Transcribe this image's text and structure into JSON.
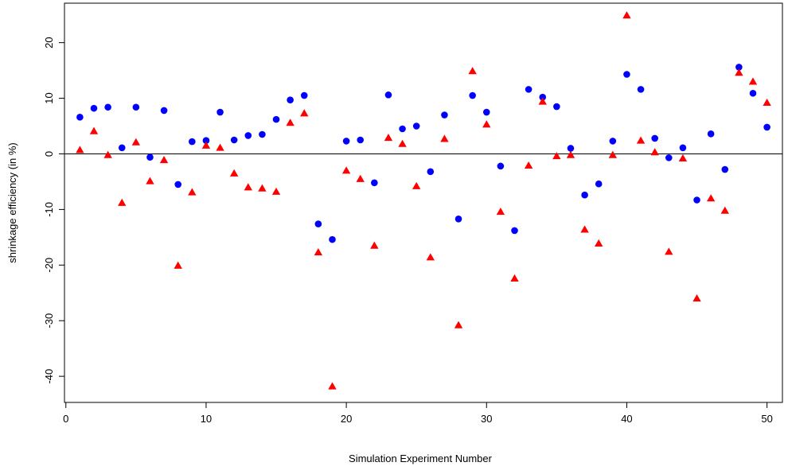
{
  "chart_data": {
    "type": "scatter",
    "title": "",
    "xlabel": "Simulation Experiment Number",
    "ylabel": "shrinkage efficiency (in %)",
    "xlim": [
      -0.1,
      51.1
    ],
    "ylim": [
      -44.7,
      27.1
    ],
    "x_ticks": [
      0,
      10,
      20,
      30,
      40,
      50
    ],
    "y_ticks": [
      -40,
      -30,
      -20,
      -10,
      0,
      10,
      20
    ],
    "reference_line_y": 0,
    "grid": false,
    "legend": null,
    "series": [
      {
        "color": "#0000ff",
        "marker": "circle",
        "x": [
          1,
          2,
          3,
          4,
          5,
          6,
          7,
          8,
          9,
          10,
          11,
          12,
          13,
          14,
          15,
          16,
          17,
          18,
          19,
          20,
          21,
          22,
          23,
          24,
          25,
          26,
          27,
          28,
          29,
          30,
          31,
          32,
          33,
          34,
          35,
          36,
          37,
          38,
          39,
          40,
          41,
          42,
          43,
          44,
          45,
          46,
          47,
          48,
          49,
          50
        ],
        "values": [
          6.6,
          8.2,
          8.4,
          1.1,
          8.4,
          -0.6,
          7.8,
          -5.5,
          2.2,
          2.4,
          7.5,
          2.5,
          3.3,
          3.5,
          6.2,
          9.7,
          10.5,
          -12.6,
          -15.4,
          2.3,
          2.5,
          -5.2,
          10.6,
          4.5,
          5.0,
          -3.2,
          7.0,
          -11.7,
          10.5,
          7.5,
          -2.2,
          -13.8,
          11.6,
          10.2,
          8.5,
          1.0,
          -7.4,
          -5.4,
          2.3,
          14.3,
          11.6,
          2.8,
          -0.7,
          1.1,
          -8.3,
          3.6,
          -2.8,
          15.6,
          10.9,
          4.8
        ]
      },
      {
        "color": "#ff0000",
        "marker": "triangle",
        "x": [
          1,
          2,
          3,
          4,
          5,
          6,
          7,
          8,
          9,
          10,
          11,
          12,
          13,
          14,
          15,
          16,
          17,
          18,
          19,
          20,
          21,
          22,
          23,
          24,
          25,
          26,
          27,
          28,
          29,
          30,
          31,
          32,
          33,
          34,
          35,
          36,
          37,
          38,
          39,
          40,
          41,
          42,
          43,
          44,
          45,
          46,
          47,
          48,
          49,
          50
        ],
        "values": [
          0.7,
          4.1,
          -0.2,
          -8.8,
          2.1,
          -4.9,
          -1.1,
          -20.1,
          -6.9,
          1.5,
          1.1,
          -3.5,
          -6.0,
          -6.2,
          -6.8,
          5.6,
          7.3,
          -17.7,
          -41.8,
          -3.0,
          -4.5,
          -16.5,
          2.9,
          1.8,
          -5.8,
          -18.6,
          2.7,
          -30.8,
          14.9,
          5.3,
          -10.4,
          -22.4,
          -2.1,
          9.4,
          -0.4,
          -0.2,
          -13.6,
          -16.1,
          -0.2,
          24.9,
          2.4,
          0.3,
          -17.6,
          -0.8,
          -26.0,
          -8.0,
          -10.2,
          14.6,
          13.0,
          9.2
        ]
      }
    ]
  }
}
